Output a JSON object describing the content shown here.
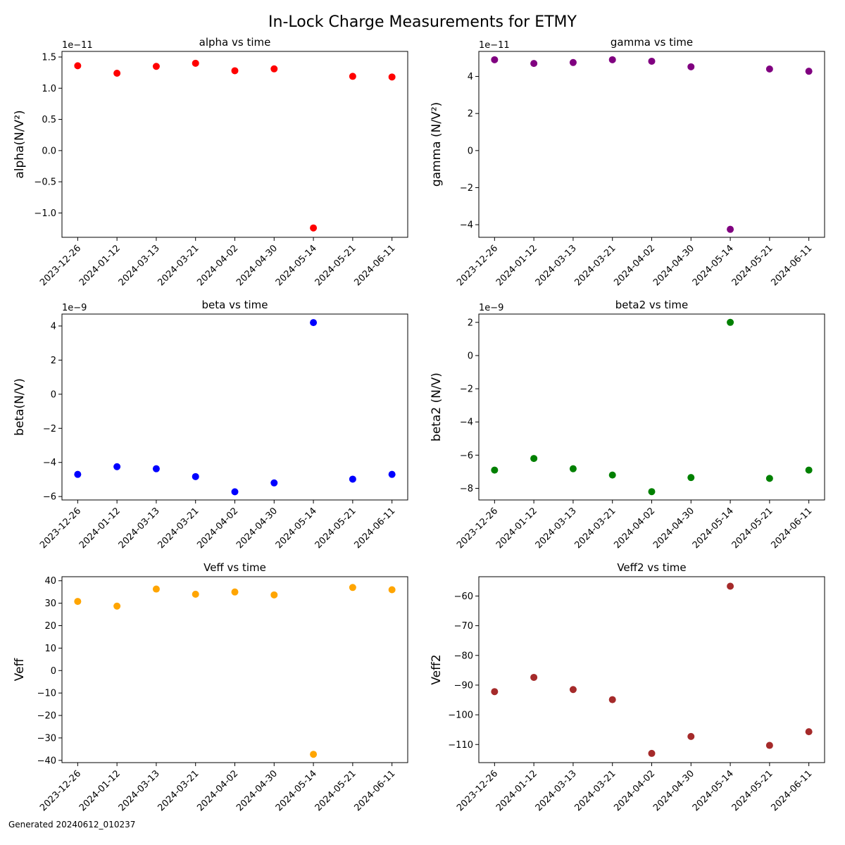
{
  "figure": {
    "title": "In-Lock Charge Measurements for ETMY",
    "footnote": "Generated 20240612_010237"
  },
  "chart_data": [
    {
      "type": "scatter",
      "title": "alpha vs time",
      "ylabel": "alpha(N/V²)",
      "offset_label": "1e−11",
      "color": "#ff0000",
      "x": [
        "2023-12-26",
        "2024-01-12",
        "2024-03-13",
        "2024-03-21",
        "2024-04-02",
        "2024-04-30",
        "2024-05-14",
        "2024-05-21",
        "2024-06-11"
      ],
      "y": [
        1.36e-11,
        1.24e-11,
        1.35e-11,
        1.4e-11,
        1.28e-11,
        1.31e-11,
        -1.24e-11,
        1.19e-11,
        1.18e-11
      ],
      "ylim": [
        -1.39e-11,
        1.59e-11
      ],
      "yticks": [
        -1e-11,
        -5e-12,
        0,
        5e-12,
        1e-11,
        1.5e-11
      ],
      "ytick_labels": [
        "−1.0",
        "−0.5",
        "0.0",
        "0.5",
        "1.0",
        "1.5"
      ]
    },
    {
      "type": "scatter",
      "title": "gamma vs time",
      "ylabel": "gamma (N/V²)",
      "offset_label": "1e−11",
      "color": "#800080",
      "x": [
        "2023-12-26",
        "2024-01-12",
        "2024-03-13",
        "2024-03-21",
        "2024-04-02",
        "2024-04-30",
        "2024-05-14",
        "2024-05-21",
        "2024-06-11"
      ],
      "y": [
        4.9e-11,
        4.7e-11,
        4.75e-11,
        4.9e-11,
        4.82e-11,
        4.52e-11,
        -4.25e-11,
        4.4e-11,
        4.28e-11
      ],
      "ylim": [
        -4.68e-11,
        5.35e-11
      ],
      "yticks": [
        -4e-11,
        -2e-11,
        0,
        2e-11,
        4e-11
      ],
      "ytick_labels": [
        "−4",
        "−2",
        "0",
        "2",
        "4"
      ]
    },
    {
      "type": "scatter",
      "title": "beta vs time",
      "ylabel": "beta(N/V)",
      "offset_label": "1e−9",
      "color": "#0000ff",
      "x": [
        "2023-12-26",
        "2024-01-12",
        "2024-03-13",
        "2024-03-21",
        "2024-04-02",
        "2024-04-30",
        "2024-05-14",
        "2024-05-21",
        "2024-06-11"
      ],
      "y": [
        -4.7e-09,
        -4.25e-09,
        -4.37e-09,
        -4.83e-09,
        -5.72e-09,
        -5.2e-09,
        4.2e-09,
        -4.98e-09,
        -4.7e-09
      ],
      "ylim": [
        -6.2e-09,
        4.7e-09
      ],
      "yticks": [
        -6e-09,
        -4e-09,
        -2e-09,
        0,
        2e-09,
        4e-09
      ],
      "ytick_labels": [
        "−6",
        "−4",
        "−2",
        "0",
        "2",
        "4"
      ]
    },
    {
      "type": "scatter",
      "title": "beta2 vs time",
      "ylabel": "beta2 (N/V)",
      "offset_label": "1e−9",
      "color": "#008000",
      "x": [
        "2023-12-26",
        "2024-01-12",
        "2024-03-13",
        "2024-03-21",
        "2024-04-02",
        "2024-04-30",
        "2024-05-14",
        "2024-05-21",
        "2024-06-11"
      ],
      "y": [
        -6.9e-09,
        -6.2e-09,
        -6.82e-09,
        -7.2e-09,
        -8.2e-09,
        -7.35e-09,
        2e-09,
        -7.4e-09,
        -6.9e-09
      ],
      "ylim": [
        -8.7e-09,
        2.5e-09
      ],
      "yticks": [
        -8e-09,
        -6e-09,
        -4e-09,
        -2e-09,
        0,
        2e-09
      ],
      "ytick_labels": [
        "−8",
        "−6",
        "−4",
        "−2",
        "0",
        "2"
      ]
    },
    {
      "type": "scatter",
      "title": "Veff vs time",
      "ylabel": "Veff",
      "offset_label": "",
      "color": "#ffa500",
      "x": [
        "2023-12-26",
        "2024-01-12",
        "2024-03-13",
        "2024-03-21",
        "2024-04-02",
        "2024-04-30",
        "2024-05-14",
        "2024-05-21",
        "2024-06-11"
      ],
      "y": [
        30.8,
        28.7,
        36.3,
        34.0,
        35.0,
        33.7,
        -37.3,
        37.0,
        36.0
      ],
      "ylim": [
        -41.0,
        41.8
      ],
      "yticks": [
        -40,
        -30,
        -20,
        -10,
        0,
        10,
        20,
        30,
        40
      ],
      "ytick_labels": [
        "−40",
        "−30",
        "−20",
        "−10",
        "0",
        "10",
        "20",
        "30",
        "40"
      ]
    },
    {
      "type": "scatter",
      "title": "Veff2 vs time",
      "ylabel": "Veff2",
      "offset_label": "",
      "color": "#a52a2a",
      "x": [
        "2023-12-26",
        "2024-01-12",
        "2024-03-13",
        "2024-03-21",
        "2024-04-02",
        "2024-04-30",
        "2024-05-14",
        "2024-05-21",
        "2024-06-11"
      ],
      "y": [
        -92.2,
        -87.4,
        -91.5,
        -94.9,
        -113.0,
        -107.3,
        -56.7,
        -110.3,
        -105.7
      ],
      "ylim": [
        -116.1,
        -53.5
      ],
      "yticks": [
        -110,
        -100,
        -90,
        -80,
        -70,
        -60
      ],
      "ytick_labels": [
        "−110",
        "−100",
        "−90",
        "−80",
        "−70",
        "−60"
      ]
    }
  ]
}
